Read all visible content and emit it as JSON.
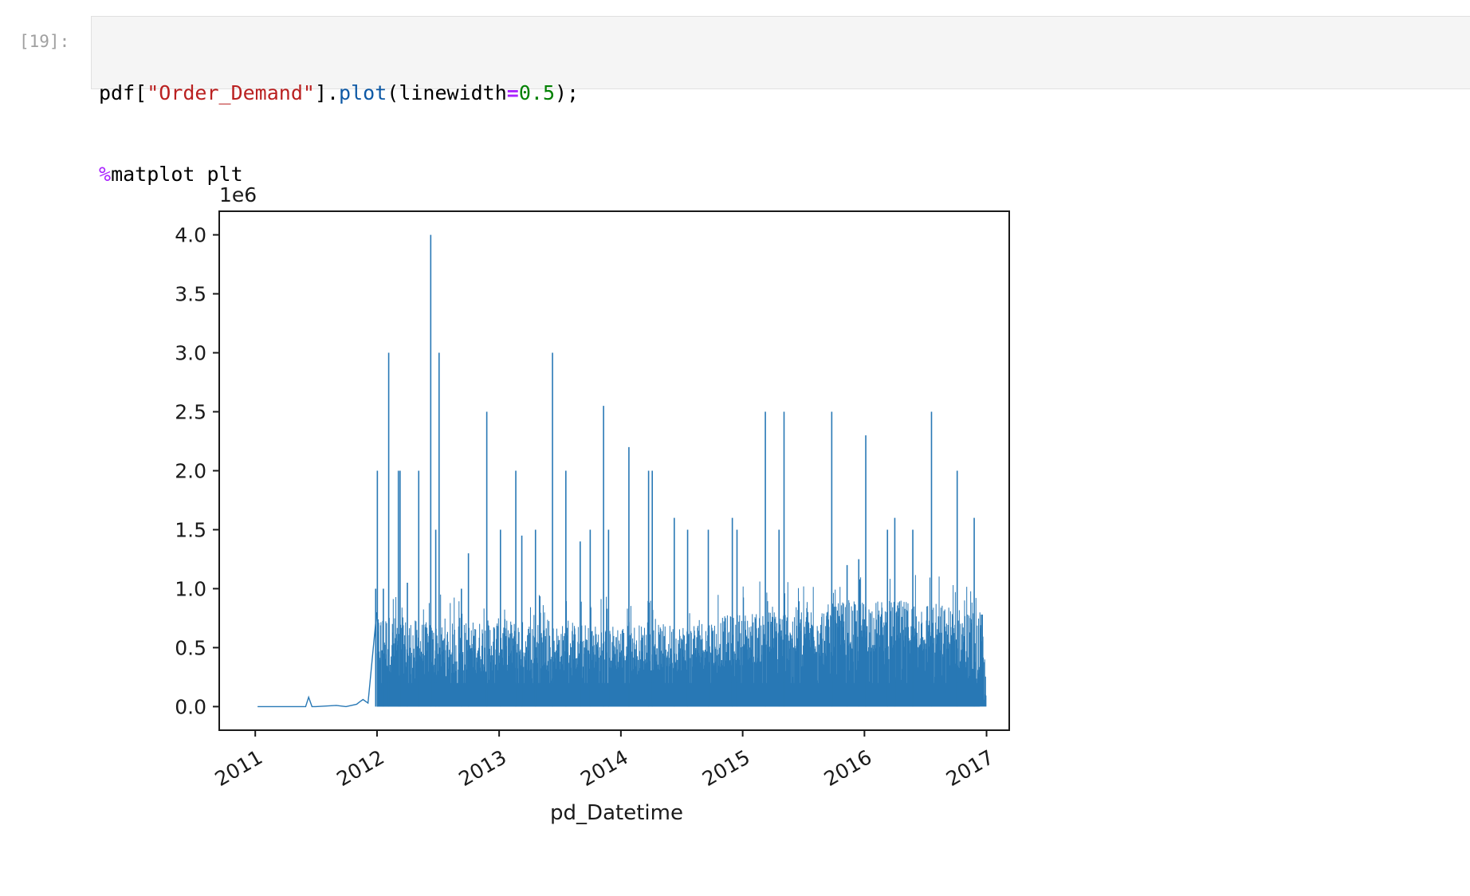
{
  "cell": {
    "prompt": "[19]:",
    "code": {
      "line1": {
        "p1": "pdf[",
        "s1": "\"Order_Demand\"",
        "p2": "].",
        "fn": "plot",
        "p3": "(linewidth",
        "op": "=",
        "num": "0.5",
        "p4": ");"
      },
      "line2": {
        "magic": "%",
        "rest": "matplot plt"
      }
    }
  },
  "colors": {
    "line": "#2878b5",
    "axes": "#1a1a1a"
  },
  "chart_data": {
    "type": "line",
    "title": "",
    "xlabel": "pd_Datetime",
    "ylabel": "",
    "y_offset_label": "1e6",
    "x_ticks": [
      "2011",
      "2012",
      "2013",
      "2014",
      "2015",
      "2016",
      "2017"
    ],
    "y_ticks": [
      "0.0",
      "0.5",
      "1.0",
      "1.5",
      "2.0",
      "2.5",
      "3.0",
      "3.5",
      "4.0"
    ],
    "xlim": [
      "2010-09-15",
      "2017-03-10"
    ],
    "ylim": [
      -200000,
      4200000
    ],
    "grid": false,
    "legend": "none",
    "linewidth": 0.5,
    "series": [
      {
        "x": [
          "2011-01-08",
          "2011-06-01",
          "2011-06-10",
          "2011-06-20",
          "2011-07-01",
          "2011-09-01",
          "2011-09-30",
          "2011-11-01",
          "2011-11-10",
          "2011-11-20",
          "2011-12-05",
          "2011-12-31"
        ],
        "values": [
          0,
          0,
          80000,
          0,
          0,
          10000,
          0,
          20000,
          40000,
          60000,
          30000,
          800000
        ]
      }
    ],
    "dense_region": {
      "start": "2012-01-01",
      "end": "2016-12-31",
      "typical_band": [
        {
          "x": "2012-01-01",
          "low": 300000,
          "high": 800000
        },
        {
          "x": "2012-07-01",
          "low": 250000,
          "high": 700000
        },
        {
          "x": "2013-01-01",
          "low": 300000,
          "high": 750000
        },
        {
          "x": "2013-07-01",
          "low": 300000,
          "high": 700000
        },
        {
          "x": "2014-01-01",
          "low": 300000,
          "high": 700000
        },
        {
          "x": "2014-07-01",
          "low": 300000,
          "high": 700000
        },
        {
          "x": "2015-01-01",
          "low": 350000,
          "high": 800000
        },
        {
          "x": "2015-07-01",
          "low": 400000,
          "high": 850000
        },
        {
          "x": "2016-01-01",
          "low": 450000,
          "high": 900000
        },
        {
          "x": "2016-07-01",
          "low": 450000,
          "high": 900000
        },
        {
          "x": "2016-12-20",
          "low": 200000,
          "high": 800000
        },
        {
          "x": "2016-12-31",
          "low": 0,
          "high": 200000
        }
      ],
      "peaks": [
        {
          "x": "2011-12-28",
          "value": 1000000
        },
        {
          "x": "2012-01-02",
          "value": 2000000
        },
        {
          "x": "2012-01-20",
          "value": 1000000
        },
        {
          "x": "2012-02-05",
          "value": 3000000
        },
        {
          "x": "2012-03-05",
          "value": 2000000
        },
        {
          "x": "2012-03-10",
          "value": 2000000
        },
        {
          "x": "2012-04-01",
          "value": 1050000
        },
        {
          "x": "2012-05-05",
          "value": 2000000
        },
        {
          "x": "2012-06-10",
          "value": 4000000
        },
        {
          "x": "2012-06-25",
          "value": 1500000
        },
        {
          "x": "2012-07-05",
          "value": 3000000
        },
        {
          "x": "2012-09-10",
          "value": 1000000
        },
        {
          "x": "2012-10-01",
          "value": 1300000
        },
        {
          "x": "2012-11-25",
          "value": 2500000
        },
        {
          "x": "2013-01-05",
          "value": 1500000
        },
        {
          "x": "2013-02-20",
          "value": 2000000
        },
        {
          "x": "2013-03-10",
          "value": 1450000
        },
        {
          "x": "2013-04-20",
          "value": 1500000
        },
        {
          "x": "2013-06-10",
          "value": 3000000
        },
        {
          "x": "2013-07-20",
          "value": 2000000
        },
        {
          "x": "2013-09-01",
          "value": 1400000
        },
        {
          "x": "2013-10-01",
          "value": 1500000
        },
        {
          "x": "2013-11-10",
          "value": 2550000
        },
        {
          "x": "2013-11-25",
          "value": 1500000
        },
        {
          "x": "2014-01-25",
          "value": 2200000
        },
        {
          "x": "2014-03-25",
          "value": 2000000
        },
        {
          "x": "2014-04-05",
          "value": 2000000
        },
        {
          "x": "2014-06-10",
          "value": 1600000
        },
        {
          "x": "2014-07-20",
          "value": 1500000
        },
        {
          "x": "2014-09-20",
          "value": 1500000
        },
        {
          "x": "2014-12-01",
          "value": 1600000
        },
        {
          "x": "2014-12-15",
          "value": 1500000
        },
        {
          "x": "2015-03-10",
          "value": 2500000
        },
        {
          "x": "2015-04-20",
          "value": 1500000
        },
        {
          "x": "2015-05-05",
          "value": 2500000
        },
        {
          "x": "2015-09-25",
          "value": 2500000
        },
        {
          "x": "2015-11-10",
          "value": 1200000
        },
        {
          "x": "2015-12-15",
          "value": 1250000
        },
        {
          "x": "2016-01-05",
          "value": 2300000
        },
        {
          "x": "2016-03-10",
          "value": 1500000
        },
        {
          "x": "2016-04-01",
          "value": 1600000
        },
        {
          "x": "2016-05-25",
          "value": 1500000
        },
        {
          "x": "2016-07-20",
          "value": 2500000
        },
        {
          "x": "2016-10-05",
          "value": 2000000
        },
        {
          "x": "2016-11-25",
          "value": 1600000
        }
      ]
    }
  }
}
